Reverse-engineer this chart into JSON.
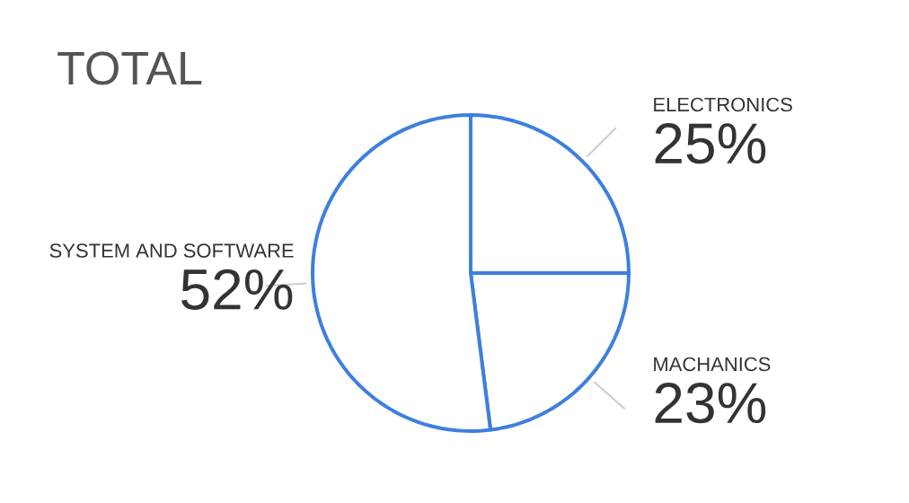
{
  "chart_data": {
    "type": "pie",
    "title": "TOTAL",
    "categories": [
      "ELECTRONICS",
      "MACHANICS",
      "SYSTEM AND SOFTWARE"
    ],
    "values": [
      25,
      23,
      52
    ],
    "value_labels": [
      "25%",
      "23%",
      "52%"
    ],
    "colors": [
      "#ffffff",
      "#ffffff",
      "#ffffff"
    ]
  }
}
